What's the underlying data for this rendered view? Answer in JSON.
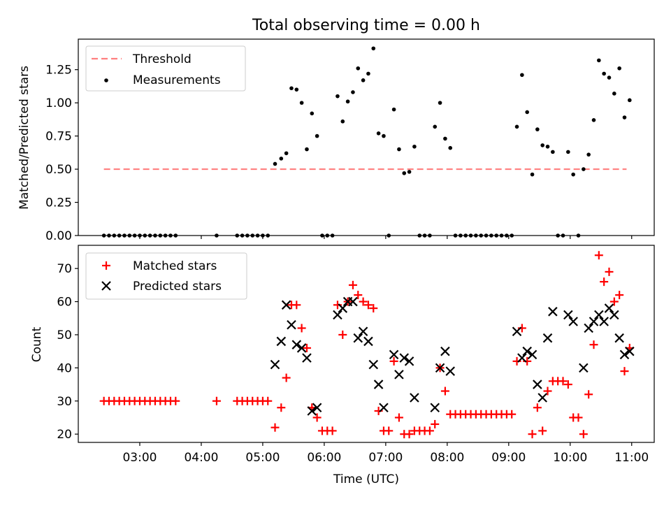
{
  "title": "Total observing time = 0.00 h",
  "chart_data": [
    {
      "type": "scatter",
      "panel": "top",
      "ylabel": "Matched/Predicted stars",
      "ylim": [
        0,
        1.48
      ],
      "xlim": [
        "02:00",
        "11:22"
      ],
      "yticks": [
        "0.00",
        "0.25",
        "0.50",
        "0.75",
        "1.00",
        "1.25"
      ],
      "ytick_values": [
        0,
        0.25,
        0.5,
        0.75,
        1.0,
        1.25
      ],
      "legend_position": "upper-left",
      "threshold": {
        "name": "Threshold",
        "value": 0.5,
        "x_start": "02:25",
        "x_end": "10:55",
        "color": "#ff7f7f"
      },
      "series": [
        {
          "name": "Measurements",
          "color": "#000000",
          "points": [
            [
              "02:25",
              0
            ],
            [
              "02:30",
              0
            ],
            [
              "02:35",
              0
            ],
            [
              "02:40",
              0
            ],
            [
              "02:45",
              0
            ],
            [
              "02:50",
              0
            ],
            [
              "02:55",
              0
            ],
            [
              "03:00",
              0
            ],
            [
              "03:05",
              0
            ],
            [
              "03:10",
              0
            ],
            [
              "03:15",
              0
            ],
            [
              "03:20",
              0
            ],
            [
              "03:25",
              0
            ],
            [
              "03:30",
              0
            ],
            [
              "03:35",
              0
            ],
            [
              "04:15",
              0
            ],
            [
              "04:35",
              0
            ],
            [
              "04:40",
              0
            ],
            [
              "04:45",
              0
            ],
            [
              "04:50",
              0
            ],
            [
              "04:55",
              0
            ],
            [
              "05:00",
              0
            ],
            [
              "05:05",
              0
            ],
            [
              "05:12",
              0.54
            ],
            [
              "05:18",
              0.58
            ],
            [
              "05:23",
              0.62
            ],
            [
              "05:28",
              1.11
            ],
            [
              "05:33",
              1.1
            ],
            [
              "05:38",
              1.0
            ],
            [
              "05:43",
              0.65
            ],
            [
              "05:48",
              0.92
            ],
            [
              "05:53",
              0.75
            ],
            [
              "05:58",
              0
            ],
            [
              "06:03",
              0
            ],
            [
              "06:08",
              0
            ],
            [
              "06:13",
              1.05
            ],
            [
              "06:18",
              0.86
            ],
            [
              "06:23",
              1.01
            ],
            [
              "06:28",
              1.08
            ],
            [
              "06:33",
              1.26
            ],
            [
              "06:38",
              1.17
            ],
            [
              "06:43",
              1.22
            ],
            [
              "06:48",
              1.41
            ],
            [
              "06:53",
              0.77
            ],
            [
              "06:58",
              0.75
            ],
            [
              "07:03",
              0
            ],
            [
              "07:08",
              0.95
            ],
            [
              "07:13",
              0.65
            ],
            [
              "07:18",
              0.47
            ],
            [
              "07:23",
              0.48
            ],
            [
              "07:28",
              0.67
            ],
            [
              "07:33",
              0
            ],
            [
              "07:38",
              0
            ],
            [
              "07:43",
              0
            ],
            [
              "07:48",
              0.82
            ],
            [
              "07:53",
              1.0
            ],
            [
              "07:58",
              0.73
            ],
            [
              "08:03",
              0.66
            ],
            [
              "08:08",
              0
            ],
            [
              "08:13",
              0
            ],
            [
              "08:18",
              0
            ],
            [
              "08:23",
              0
            ],
            [
              "08:28",
              0
            ],
            [
              "08:33",
              0
            ],
            [
              "08:38",
              0
            ],
            [
              "08:43",
              0
            ],
            [
              "08:48",
              0
            ],
            [
              "08:53",
              0
            ],
            [
              "08:58",
              0
            ],
            [
              "09:03",
              0
            ],
            [
              "09:08",
              0.82
            ],
            [
              "09:13",
              1.21
            ],
            [
              "09:18",
              0.93
            ],
            [
              "09:23",
              0.46
            ],
            [
              "09:28",
              0.8
            ],
            [
              "09:33",
              0.68
            ],
            [
              "09:38",
              0.67
            ],
            [
              "09:43",
              0.63
            ],
            [
              "09:48",
              0
            ],
            [
              "09:53",
              0
            ],
            [
              "09:58",
              0.63
            ],
            [
              "10:03",
              0.46
            ],
            [
              "10:08",
              0
            ],
            [
              "10:13",
              0.5
            ],
            [
              "10:18",
              0.61
            ],
            [
              "10:23",
              0.87
            ],
            [
              "10:28",
              1.32
            ],
            [
              "10:33",
              1.22
            ],
            [
              "10:38",
              1.19
            ],
            [
              "10:43",
              1.07
            ],
            [
              "10:48",
              1.26
            ],
            [
              "10:53",
              0.89
            ],
            [
              "10:58",
              1.02
            ]
          ]
        }
      ]
    },
    {
      "type": "scatter",
      "panel": "bottom",
      "xlabel": "Time (UTC)",
      "ylabel": "Count",
      "ylim": [
        17.5,
        77
      ],
      "xlim": [
        "02:00",
        "11:22"
      ],
      "xticks": [
        "03:00",
        "04:00",
        "05:00",
        "06:00",
        "07:00",
        "08:00",
        "09:00",
        "10:00",
        "11:00"
      ],
      "yticks": [
        "20",
        "30",
        "40",
        "50",
        "60",
        "70"
      ],
      "ytick_values": [
        20,
        30,
        40,
        50,
        60,
        70
      ],
      "legend_position": "upper-left",
      "series": [
        {
          "name": "Matched stars",
          "color": "#ff0000",
          "marker": "plus",
          "points": [
            [
              "02:25",
              30
            ],
            [
              "02:30",
              30
            ],
            [
              "02:35",
              30
            ],
            [
              "02:40",
              30
            ],
            [
              "02:45",
              30
            ],
            [
              "02:50",
              30
            ],
            [
              "02:55",
              30
            ],
            [
              "03:00",
              30
            ],
            [
              "03:05",
              30
            ],
            [
              "03:10",
              30
            ],
            [
              "03:15",
              30
            ],
            [
              "03:20",
              30
            ],
            [
              "03:25",
              30
            ],
            [
              "03:30",
              30
            ],
            [
              "03:35",
              30
            ],
            [
              "04:15",
              30
            ],
            [
              "04:35",
              30
            ],
            [
              "04:40",
              30
            ],
            [
              "04:45",
              30
            ],
            [
              "04:50",
              30
            ],
            [
              "04:55",
              30
            ],
            [
              "05:00",
              30
            ],
            [
              "05:05",
              30
            ],
            [
              "05:12",
              22
            ],
            [
              "05:18",
              28
            ],
            [
              "05:23",
              37
            ],
            [
              "05:28",
              59
            ],
            [
              "05:33",
              59
            ],
            [
              "05:38",
              52
            ],
            [
              "05:43",
              46
            ],
            [
              "05:48",
              28
            ],
            [
              "05:53",
              25
            ],
            [
              "05:58",
              21
            ],
            [
              "06:03",
              21
            ],
            [
              "06:08",
              21
            ],
            [
              "06:13",
              59
            ],
            [
              "06:18",
              50
            ],
            [
              "06:23",
              60
            ],
            [
              "06:28",
              65
            ],
            [
              "06:33",
              62
            ],
            [
              "06:38",
              60
            ],
            [
              "06:43",
              59
            ],
            [
              "06:48",
              58
            ],
            [
              "06:53",
              27
            ],
            [
              "06:58",
              21
            ],
            [
              "07:03",
              21
            ],
            [
              "07:08",
              42
            ],
            [
              "07:13",
              25
            ],
            [
              "07:18",
              20
            ],
            [
              "07:23",
              20
            ],
            [
              "07:28",
              21
            ],
            [
              "07:33",
              21
            ],
            [
              "07:38",
              21
            ],
            [
              "07:43",
              21
            ],
            [
              "07:48",
              23
            ],
            [
              "07:53",
              40
            ],
            [
              "07:58",
              33
            ],
            [
              "08:03",
              26
            ],
            [
              "08:08",
              26
            ],
            [
              "08:13",
              26
            ],
            [
              "08:18",
              26
            ],
            [
              "08:23",
              26
            ],
            [
              "08:28",
              26
            ],
            [
              "08:33",
              26
            ],
            [
              "08:38",
              26
            ],
            [
              "08:43",
              26
            ],
            [
              "08:48",
              26
            ],
            [
              "08:53",
              26
            ],
            [
              "08:58",
              26
            ],
            [
              "09:03",
              26
            ],
            [
              "09:08",
              42
            ],
            [
              "09:13",
              52
            ],
            [
              "09:18",
              42
            ],
            [
              "09:23",
              20
            ],
            [
              "09:28",
              28
            ],
            [
              "09:33",
              21
            ],
            [
              "09:38",
              33
            ],
            [
              "09:43",
              36
            ],
            [
              "09:48",
              36
            ],
            [
              "09:53",
              36
            ],
            [
              "09:58",
              35
            ],
            [
              "10:03",
              25
            ],
            [
              "10:08",
              25
            ],
            [
              "10:13",
              20
            ],
            [
              "10:18",
              32
            ],
            [
              "10:23",
              47
            ],
            [
              "10:28",
              74
            ],
            [
              "10:33",
              66
            ],
            [
              "10:38",
              69
            ],
            [
              "10:43",
              60
            ],
            [
              "10:48",
              62
            ],
            [
              "10:53",
              39
            ],
            [
              "10:58",
              46
            ]
          ]
        },
        {
          "name": "Predicted stars",
          "color": "#000000",
          "marker": "x",
          "points": [
            [
              "05:12",
              41
            ],
            [
              "05:18",
              48
            ],
            [
              "05:23",
              59
            ],
            [
              "05:28",
              53
            ],
            [
              "05:33",
              47
            ],
            [
              "05:38",
              46
            ],
            [
              "05:43",
              43
            ],
            [
              "05:48",
              27
            ],
            [
              "05:53",
              28
            ],
            [
              "06:13",
              56
            ],
            [
              "06:18",
              58
            ],
            [
              "06:23",
              60
            ],
            [
              "06:28",
              60
            ],
            [
              "06:33",
              49
            ],
            [
              "06:38",
              51
            ],
            [
              "06:43",
              48
            ],
            [
              "06:48",
              41
            ],
            [
              "06:53",
              35
            ],
            [
              "06:58",
              28
            ],
            [
              "07:08",
              44
            ],
            [
              "07:13",
              38
            ],
            [
              "07:18",
              43
            ],
            [
              "07:23",
              42
            ],
            [
              "07:28",
              31
            ],
            [
              "07:48",
              28
            ],
            [
              "07:53",
              40
            ],
            [
              "07:58",
              45
            ],
            [
              "08:03",
              39
            ],
            [
              "09:08",
              51
            ],
            [
              "09:13",
              43
            ],
            [
              "09:18",
              45
            ],
            [
              "09:23",
              44
            ],
            [
              "09:28",
              35
            ],
            [
              "09:33",
              31
            ],
            [
              "09:38",
              49
            ],
            [
              "09:43",
              57
            ],
            [
              "09:58",
              56
            ],
            [
              "10:03",
              54
            ],
            [
              "10:13",
              40
            ],
            [
              "10:18",
              52
            ],
            [
              "10:23",
              54
            ],
            [
              "10:28",
              56
            ],
            [
              "10:33",
              54
            ],
            [
              "10:38",
              58
            ],
            [
              "10:43",
              56
            ],
            [
              "10:48",
              49
            ],
            [
              "10:53",
              44
            ],
            [
              "10:58",
              45
            ]
          ]
        }
      ]
    }
  ]
}
